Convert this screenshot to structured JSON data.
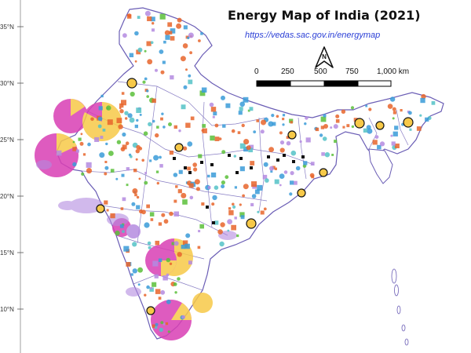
{
  "map": {
    "title": "Energy Map of India (2021)",
    "url": "https://vedas.sac.gov.in/energymap",
    "latitude_labels": [
      "35°N",
      "30°N",
      "25°N",
      "20°N",
      "15°N",
      "10°N"
    ],
    "scale_bar": {
      "labels": [
        "0",
        "250",
        "500",
        "750",
        "1,000 km"
      ]
    },
    "north_arrow_letter": "N",
    "colors": {
      "land": "#ffffff",
      "state_borders": "#6a5db5",
      "solar": "#f7c948",
      "wind": "#d93fb4",
      "hydro": "#3a9bd8",
      "thermal": "#e8652c",
      "biomass": "#5bbf3a",
      "coal": "#111111",
      "lavender": "#b48be0",
      "teal": "#54c2c7"
    }
  }
}
